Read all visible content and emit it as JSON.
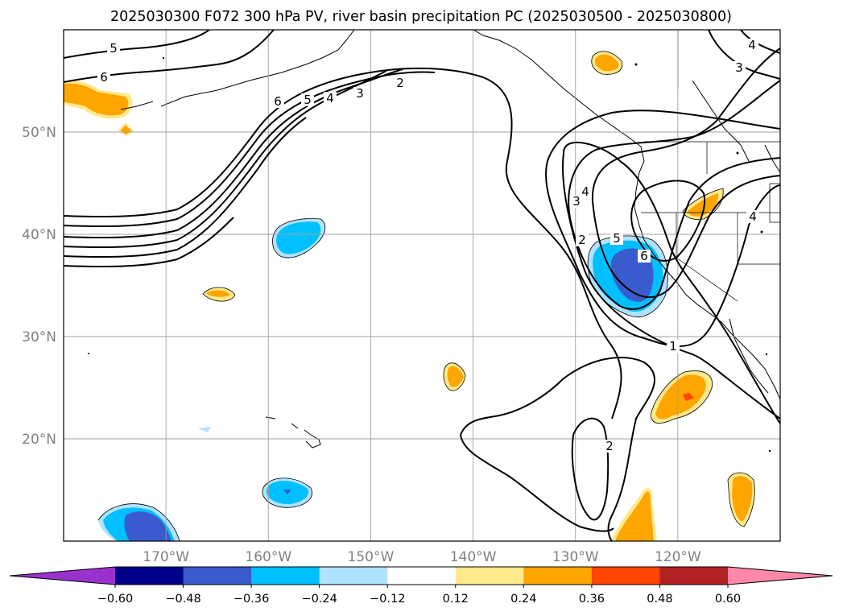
{
  "chart_data": {
    "type": "contour-map",
    "title": "2025030300 F072 300 hPa PV, river basin precipitation PC (2025030500 - 2025030800)",
    "x_ticks": [
      {
        "lon": -170,
        "label": "170°W"
      },
      {
        "lon": -160,
        "label": "160°W"
      },
      {
        "lon": -150,
        "label": "150°W"
      },
      {
        "lon": -140,
        "label": "140°W"
      },
      {
        "lon": -130,
        "label": "130°W"
      },
      {
        "lon": -120,
        "label": "120°W"
      }
    ],
    "y_ticks": [
      {
        "lat": 20,
        "label": "20°N"
      },
      {
        "lat": 30,
        "label": "30°N"
      },
      {
        "lat": 40,
        "label": "40°N"
      },
      {
        "lat": 50,
        "label": "50°N"
      }
    ],
    "lon_range": [
      -180,
      -110
    ],
    "lat_range": [
      10,
      60
    ],
    "grid": true,
    "contour_variable": "300 hPa PV",
    "contour_levels": [
      1,
      2,
      3,
      4,
      5,
      6
    ],
    "colorbar": {
      "levels": [
        -0.6,
        -0.48,
        -0.36,
        -0.24,
        -0.12,
        0.12,
        0.24,
        0.36,
        0.48,
        0.6
      ],
      "labels": [
        "−0.60",
        "−0.48",
        "−0.36",
        "−0.24",
        "−0.12",
        "0.12",
        "0.24",
        "0.36",
        "0.48",
        "0.60"
      ],
      "colors": [
        "#9932cc",
        "#00008b",
        "#3a5bcd",
        "#00bfff",
        "#b0e2ff",
        "#ffffff",
        "#ffe98a",
        "#ffa500",
        "#ff4500",
        "#b22222",
        "#ff88aa"
      ],
      "extend": "both"
    }
  }
}
